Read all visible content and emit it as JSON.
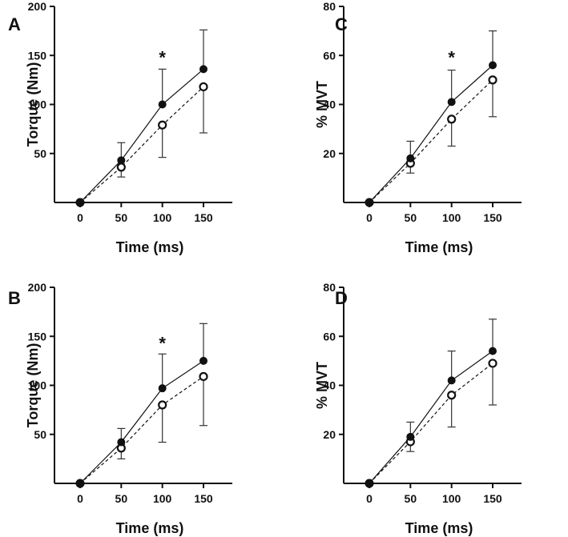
{
  "chart_data": [
    {
      "id": "A",
      "type": "line",
      "panel_label": "A",
      "xlabel": "Time (ms)",
      "ylabel": "Torque (Nm)",
      "x": [
        0,
        50,
        100,
        150
      ],
      "xlim": [
        0,
        170
      ],
      "ylim": [
        0,
        200
      ],
      "xticks": [
        0,
        50,
        100,
        150
      ],
      "yticks": [
        50,
        100,
        150,
        200
      ],
      "series": [
        {
          "name": "filled",
          "style": "solid",
          "marker": "filled",
          "values": [
            0,
            43,
            100,
            136
          ],
          "error_upper": [
            0,
            18,
            36,
            40
          ],
          "error_lower": [
            0,
            0,
            0,
            0
          ]
        },
        {
          "name": "open",
          "style": "dashed",
          "marker": "open",
          "values": [
            0,
            36,
            79,
            118
          ],
          "error_upper": [
            0,
            0,
            0,
            0
          ],
          "error_lower": [
            0,
            10,
            33,
            47
          ]
        }
      ],
      "annotations": [
        {
          "text": "*",
          "x": 100,
          "y": 150
        }
      ]
    },
    {
      "id": "C",
      "type": "line",
      "panel_label": "C",
      "xlabel": "Time (ms)",
      "ylabel": "% MVT",
      "x": [
        0,
        50,
        100,
        150
      ],
      "xlim": [
        0,
        170
      ],
      "ylim": [
        0,
        80
      ],
      "xticks": [
        0,
        50,
        100,
        150
      ],
      "yticks": [
        20,
        40,
        60,
        80
      ],
      "series": [
        {
          "name": "filled",
          "style": "solid",
          "marker": "filled",
          "values": [
            0,
            18,
            41,
            56
          ],
          "error_upper": [
            0,
            7,
            13,
            14
          ],
          "error_lower": [
            0,
            0,
            0,
            0
          ]
        },
        {
          "name": "open",
          "style": "dashed",
          "marker": "open",
          "values": [
            0,
            16,
            34,
            50
          ],
          "error_upper": [
            0,
            0,
            0,
            0
          ],
          "error_lower": [
            0,
            4,
            11,
            15
          ]
        }
      ],
      "annotations": [
        {
          "text": "*",
          "x": 100,
          "y": 60
        }
      ]
    },
    {
      "id": "B",
      "type": "line",
      "panel_label": "B",
      "xlabel": "Time (ms)",
      "ylabel": "Torque (Nm)",
      "x": [
        0,
        50,
        100,
        150
      ],
      "xlim": [
        0,
        170
      ],
      "ylim": [
        0,
        200
      ],
      "xticks": [
        0,
        50,
        100,
        150
      ],
      "yticks": [
        50,
        100,
        150,
        200
      ],
      "series": [
        {
          "name": "filled",
          "style": "solid",
          "marker": "filled",
          "values": [
            0,
            42,
            97,
            125
          ],
          "error_upper": [
            0,
            14,
            35,
            38
          ],
          "error_lower": [
            0,
            0,
            0,
            0
          ]
        },
        {
          "name": "open",
          "style": "dashed",
          "marker": "open",
          "values": [
            0,
            36,
            80,
            109
          ],
          "error_upper": [
            0,
            0,
            0,
            0
          ],
          "error_lower": [
            0,
            11,
            38,
            50
          ]
        }
      ],
      "annotations": [
        {
          "text": "*",
          "x": 100,
          "y": 145
        }
      ]
    },
    {
      "id": "D",
      "type": "line",
      "panel_label": "D",
      "xlabel": "Time (ms)",
      "ylabel": "% MVT",
      "x": [
        0,
        50,
        100,
        150
      ],
      "xlim": [
        0,
        170
      ],
      "ylim": [
        0,
        80
      ],
      "xticks": [
        0,
        50,
        100,
        150
      ],
      "yticks": [
        20,
        40,
        60,
        80
      ],
      "series": [
        {
          "name": "filled",
          "style": "solid",
          "marker": "filled",
          "values": [
            0,
            19,
            42,
            54
          ],
          "error_upper": [
            0,
            6,
            12,
            13
          ],
          "error_lower": [
            0,
            0,
            0,
            0
          ]
        },
        {
          "name": "open",
          "style": "dashed",
          "marker": "open",
          "values": [
            0,
            17,
            36,
            49
          ],
          "error_upper": [
            0,
            0,
            0,
            0
          ],
          "error_lower": [
            0,
            4,
            13,
            17
          ]
        }
      ],
      "annotations": []
    }
  ]
}
